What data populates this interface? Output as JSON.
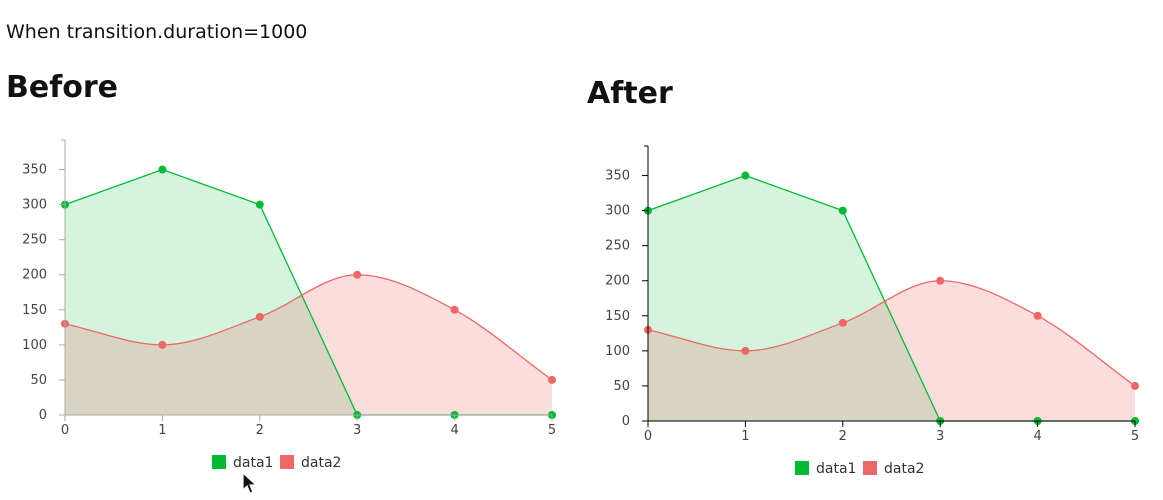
{
  "page": {
    "subtitle": "When transition.duration=1000"
  },
  "colors": {
    "data1": "#00bb33",
    "data2": "#ee6666",
    "data1_fill": "rgba(0, 187, 51, 0.17)",
    "data2_fill": "rgba(238, 102, 102, 0.22)"
  },
  "icons": {
    "cursor": "arrow-pointer-icon"
  },
  "chart_data": [
    {
      "type": "area",
      "title": "Before",
      "xlabel": "",
      "ylabel": "",
      "x": [
        0,
        1,
        2,
        3,
        4,
        5
      ],
      "ylim": [
        0,
        385
      ],
      "y_ticks": [
        0,
        50,
        100,
        150,
        200,
        250,
        300,
        350
      ],
      "grid": false,
      "legend_placement": "bottom-center",
      "axis_color": "#aaaaaa",
      "series": [
        {
          "name": "data1",
          "values": [
            300,
            350,
            300,
            0,
            0,
            0
          ],
          "curve": "linear",
          "color": "#00bb33"
        },
        {
          "name": "data2",
          "values": [
            130,
            100,
            140,
            200,
            150,
            50
          ],
          "curve": "spline",
          "color": "#ee6666"
        }
      ]
    },
    {
      "type": "area",
      "title": "After",
      "xlabel": "",
      "ylabel": "",
      "x": [
        0,
        1,
        2,
        3,
        4,
        5
      ],
      "ylim": [
        0,
        385
      ],
      "y_ticks": [
        0,
        50,
        100,
        150,
        200,
        250,
        300,
        350
      ],
      "grid": false,
      "legend_placement": "bottom-center",
      "axis_color": "#000000",
      "series": [
        {
          "name": "data1",
          "values": [
            300,
            350,
            300,
            0,
            0,
            0
          ],
          "curve": "linear",
          "color": "#00bb33"
        },
        {
          "name": "data2",
          "values": [
            130,
            100,
            140,
            200,
            150,
            50
          ],
          "curve": "spline",
          "color": "#ee6666"
        }
      ]
    }
  ]
}
